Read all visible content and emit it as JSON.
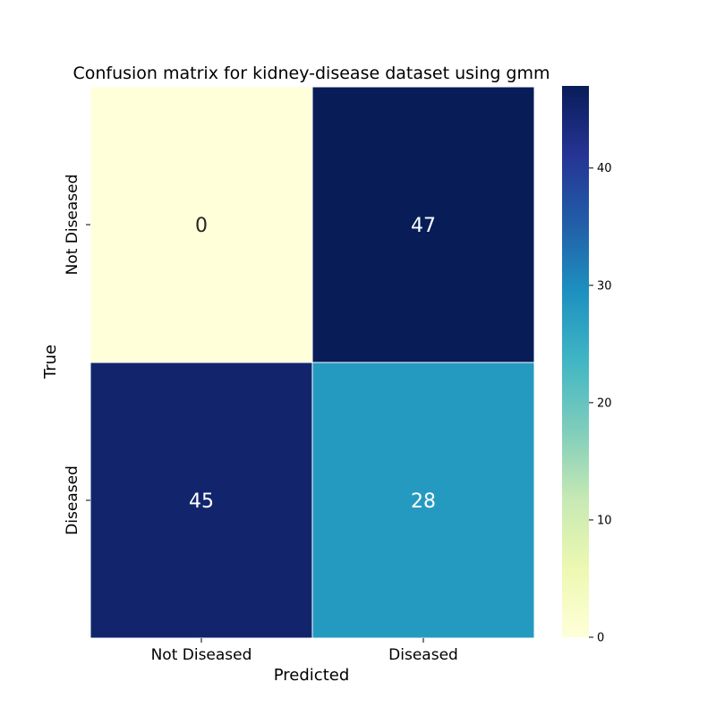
{
  "chart_data": {
    "type": "heatmap",
    "title": "Confusion matrix for kidney-disease dataset using gmm",
    "xlabel": "Predicted",
    "ylabel": "True",
    "x_categories": [
      "Not Diseased",
      "Diseased"
    ],
    "y_categories": [
      "Not Diseased",
      "Diseased"
    ],
    "values": [
      [
        0,
        47
      ],
      [
        45,
        28
      ]
    ],
    "colorbar": {
      "min": 0,
      "max": 47,
      "ticks": [
        0,
        10,
        20,
        30,
        40
      ],
      "colormap": "YlGnBu"
    },
    "grid": false,
    "legend": "colorbar-right"
  }
}
